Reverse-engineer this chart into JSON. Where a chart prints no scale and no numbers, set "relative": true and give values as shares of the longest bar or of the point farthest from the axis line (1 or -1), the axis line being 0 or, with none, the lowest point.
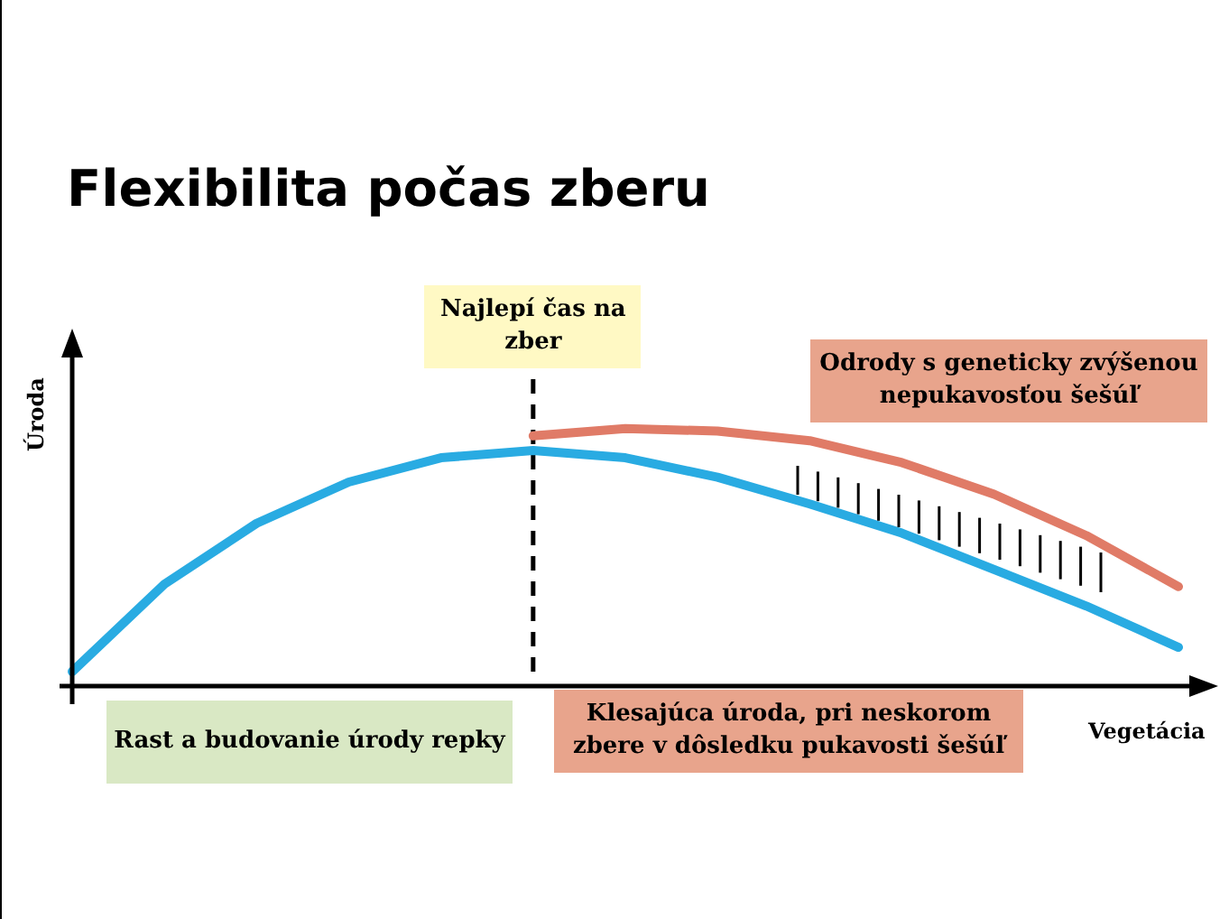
{
  "chart_data": {
    "type": "line",
    "relative": true,
    "title": "Flexibilita počas zberu",
    "xlabel": "Vegetácia",
    "ylabel": "Úroda",
    "categories": [
      null,
      null,
      null,
      null,
      null,
      null,
      null,
      null,
      null,
      null,
      null,
      null,
      null
    ],
    "marker": "none",
    "line_style": "solid",
    "series": [
      {
        "color": "#29abe2",
        "values": [
          0,
          0.36,
          0.61,
          0.78,
          0.88,
          0.91,
          0.88,
          0.8,
          0.69,
          0.57,
          0.42,
          0.27,
          0.1
        ]
      },
      {
        "color": "#e07b67",
        "values": [
          null,
          null,
          null,
          null,
          null,
          0.97,
          1,
          0.99,
          0.95,
          0.86,
          0.73,
          0.56,
          0.35
        ]
      }
    ],
    "ref_lines": [
      {
        "axis": "x",
        "label": "Najlepí čas na zber",
        "line_style": "dashed",
        "color": "#000000"
      }
    ],
    "annotations": [
      "Odrody s geneticky zvýšenou nepukavosťou šešúľ",
      "Rast a budovanie úrody repky",
      "Klesajúca úroda, pri neskorom zbere v dôsledku pukavosti šešúľ"
    ]
  }
}
